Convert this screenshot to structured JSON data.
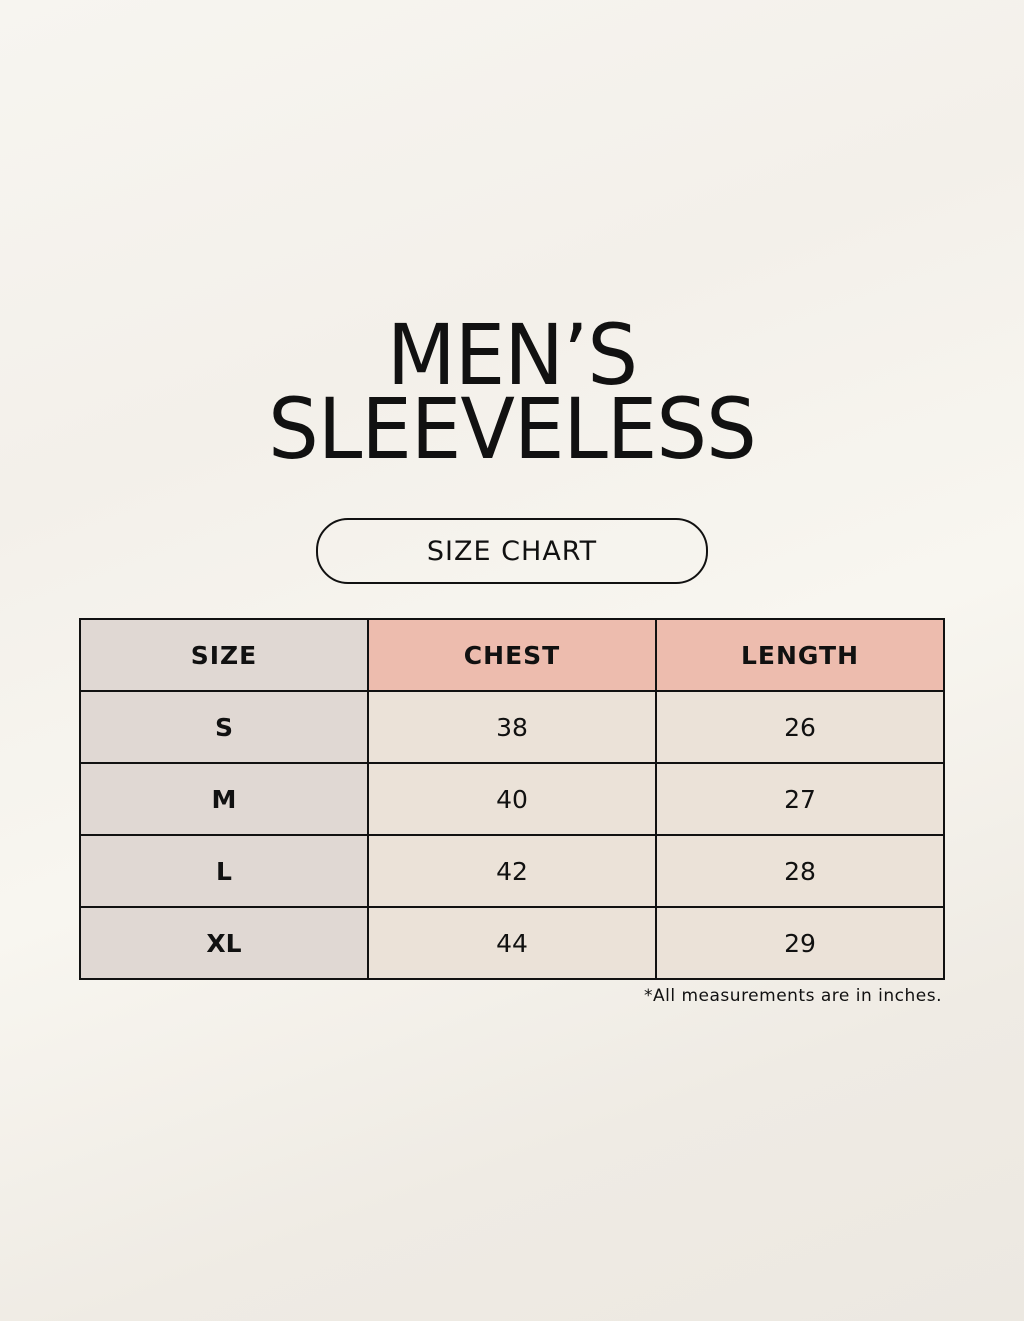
{
  "title": {
    "line1": "MEN’S",
    "line2": "SLEEVELESS"
  },
  "badge": "SIZE CHART",
  "table": {
    "headers": [
      "SIZE",
      "CHEST",
      "LENGTH"
    ],
    "rows": [
      [
        "S",
        "38",
        "26"
      ],
      [
        "M",
        "40",
        "27"
      ],
      [
        "L",
        "42",
        "28"
      ],
      [
        "XL",
        "44",
        "29"
      ]
    ]
  },
  "note": "*All measurements are in inches.",
  "colors": {
    "size_column": "#e0d8d3",
    "header_accent": "#edbcae",
    "cell": "#ebe2d8",
    "background": "#f6f4ee"
  }
}
